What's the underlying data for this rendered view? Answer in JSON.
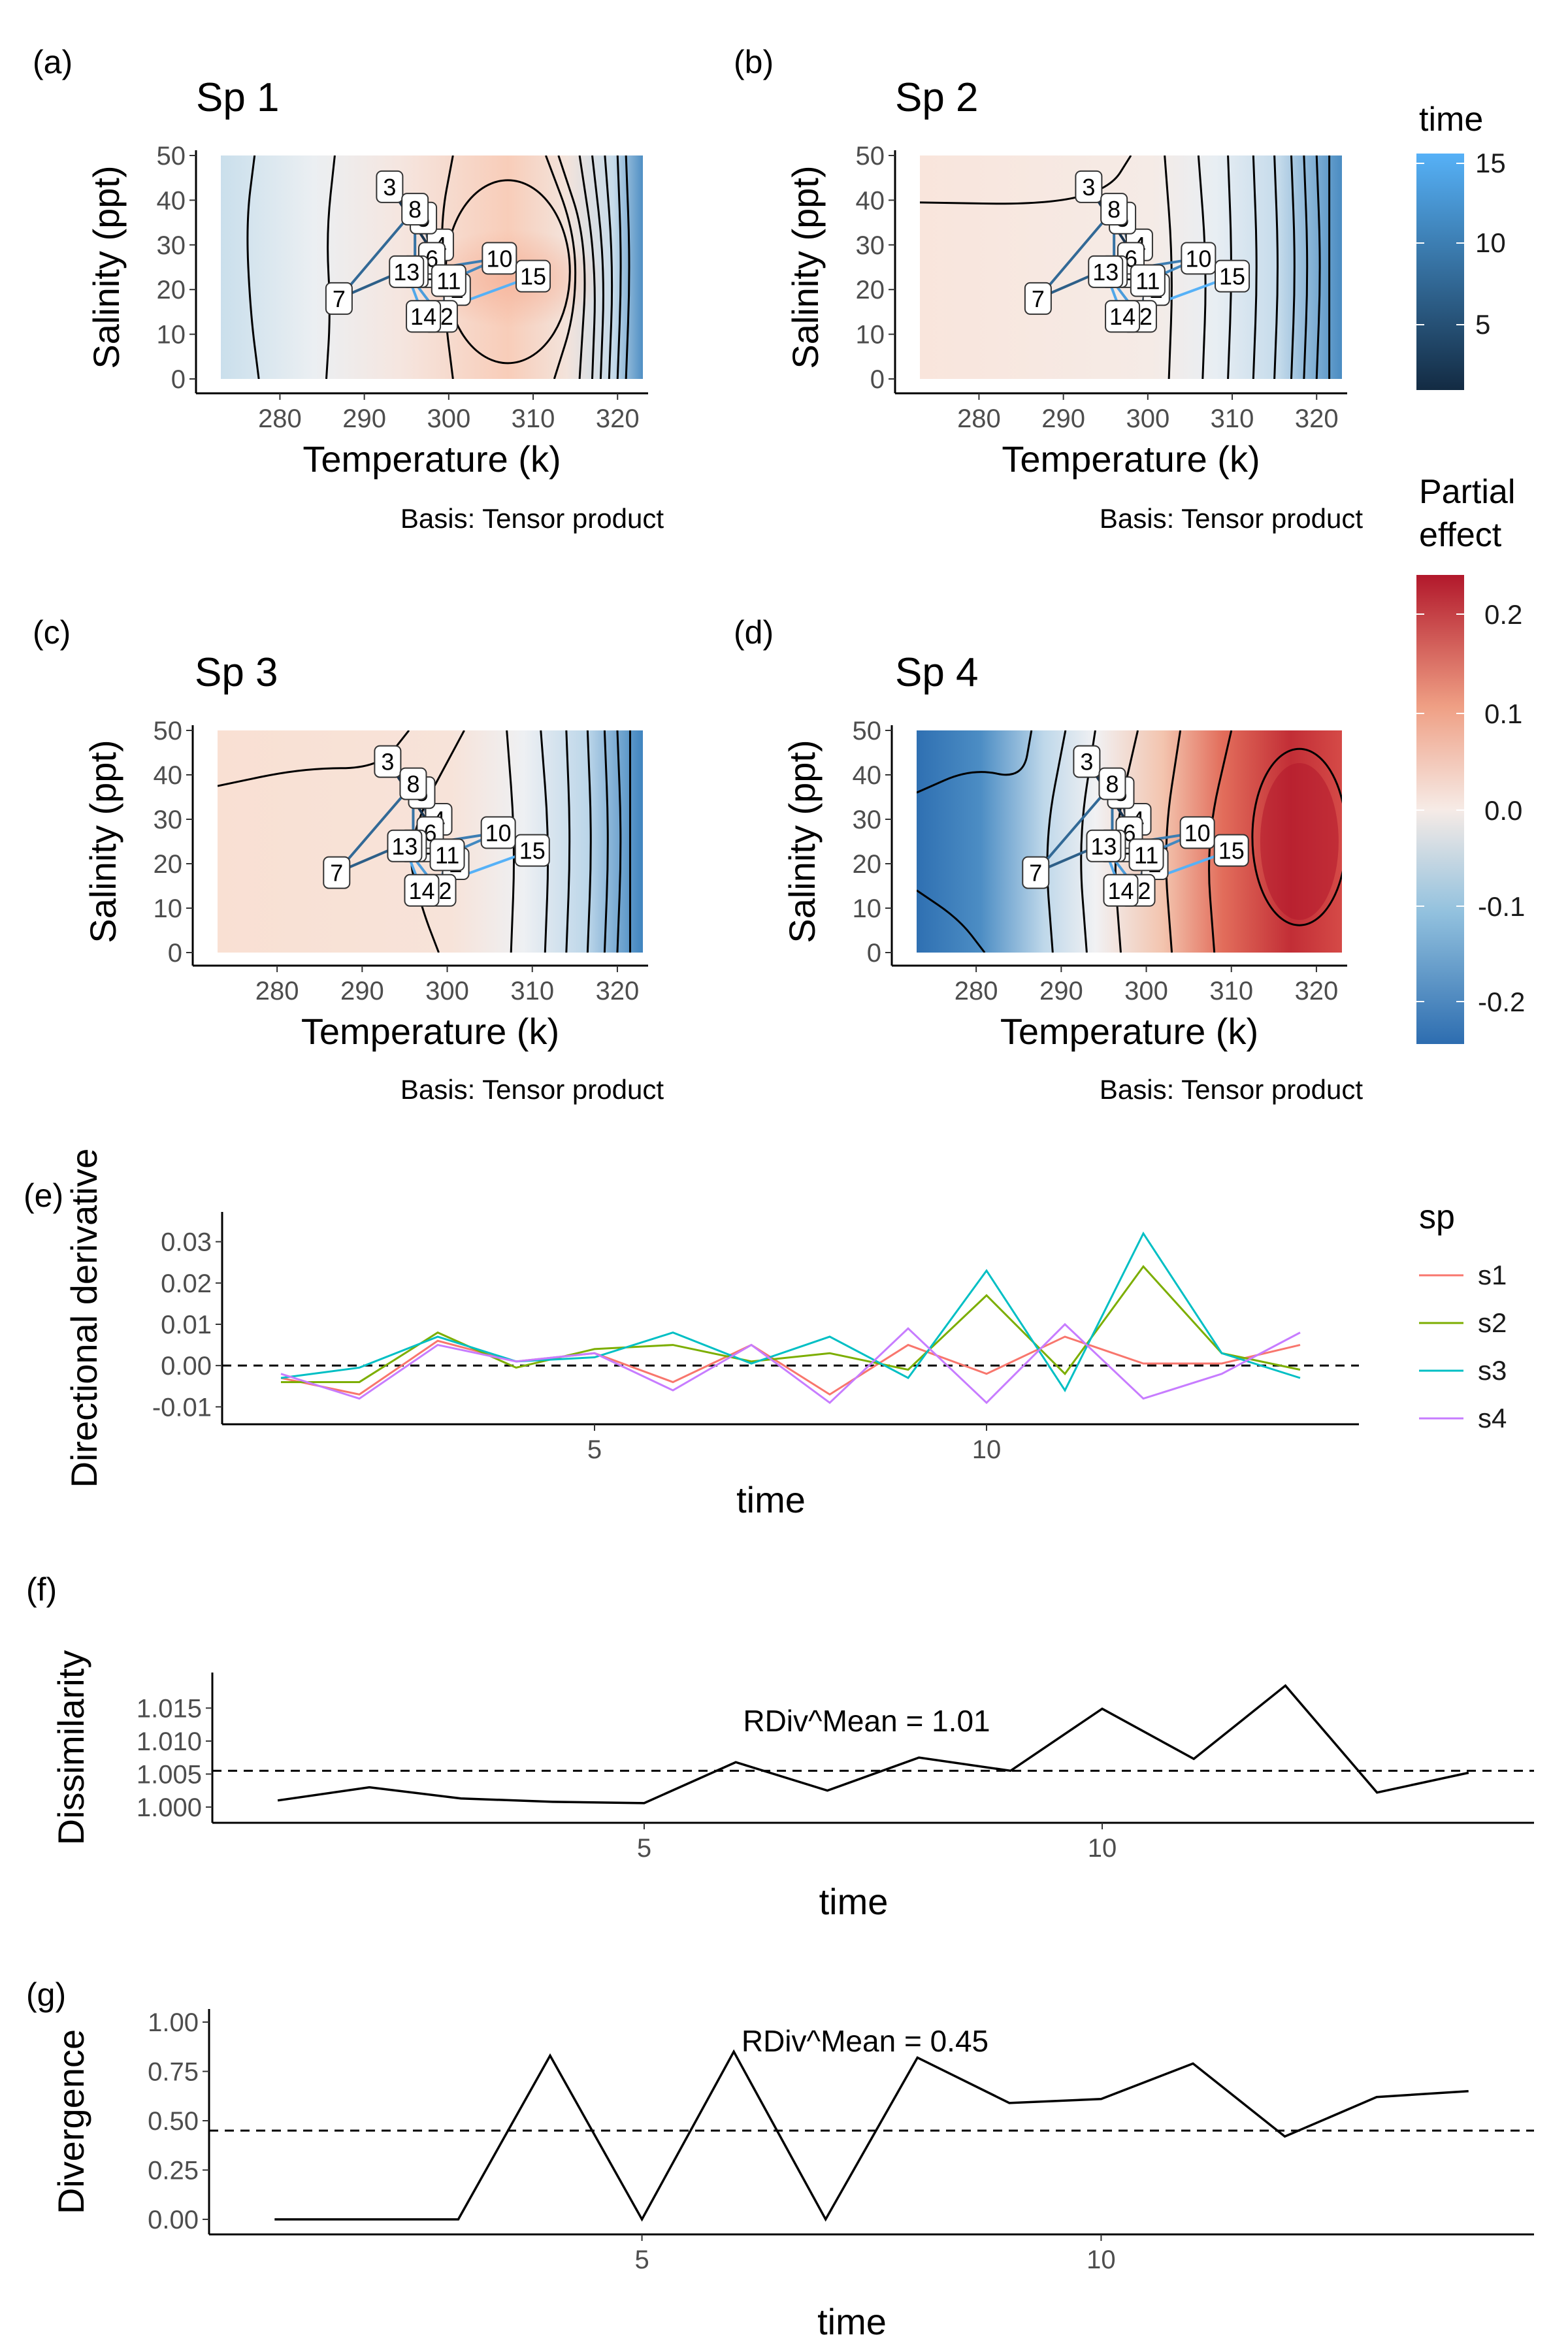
{
  "panel_tags": {
    "a": "(a)",
    "b": "(b)",
    "c": "(c)",
    "d": "(d)",
    "e": "(e)",
    "f": "(f)",
    "g": "(g)"
  },
  "caption": "Basis: Tensor product",
  "legends": {
    "time": {
      "title": "time",
      "ticks": [
        "15",
        "10",
        "5"
      ],
      "color_low": "#132B43",
      "color_high": "#56B1F7"
    },
    "effect": {
      "title_line1": "Partial",
      "title_line2": "effect",
      "ticks": [
        "0.2",
        "0.1",
        "0.0",
        "-0.1",
        "-0.2"
      ]
    },
    "sp": {
      "title": "sp",
      "items": [
        {
          "label": "s1",
          "color": "#F8766D"
        },
        {
          "label": "s2",
          "color": "#7CAE00"
        },
        {
          "label": "s3",
          "color": "#00BFC4"
        },
        {
          "label": "s4",
          "color": "#C77CFF"
        }
      ]
    }
  },
  "chart_data": [
    {
      "type": "heatmap",
      "title": "Sp 1",
      "xlabel": "Temperature (k)",
      "ylabel": "Salinity (ppt)",
      "xlim": [
        273,
        323
      ],
      "ylim": [
        0,
        50
      ],
      "x_ticks": [
        280,
        290,
        300,
        310,
        320
      ],
      "y_ticks": [
        0,
        10,
        20,
        30,
        40,
        50
      ],
      "effect_summary": "cool-to-neutral at low temperature, warm peak near 308 K and 22 ppt, strongly negative above 318 K"
    },
    {
      "type": "heatmap",
      "title": "Sp 2",
      "xlabel": "Temperature (k)",
      "ylabel": "Salinity (ppt)",
      "xlim": [
        273,
        323
      ],
      "ylim": [
        0,
        50
      ],
      "x_ticks": [
        280,
        290,
        300,
        310,
        320
      ],
      "y_ticks": [
        0,
        10,
        20,
        30,
        40,
        50
      ],
      "effect_summary": "weakly positive below 305 K, decreasing steadily to negative at high temperature"
    },
    {
      "type": "heatmap",
      "title": "Sp 3",
      "xlabel": "Temperature (k)",
      "ylabel": "Salinity (ppt)",
      "xlim": [
        273,
        323
      ],
      "ylim": [
        0,
        50
      ],
      "x_ticks": [
        280,
        290,
        300,
        310,
        320
      ],
      "y_ticks": [
        0,
        10,
        20,
        30,
        40,
        50
      ],
      "effect_summary": "weakly positive below 305 K, decreasing to negative above 315 K"
    },
    {
      "type": "heatmap",
      "title": "Sp 4",
      "xlabel": "Temperature (k)",
      "ylabel": "Salinity (ppt)",
      "xlim": [
        273,
        323
      ],
      "ylim": [
        0,
        50
      ],
      "x_ticks": [
        280,
        290,
        300,
        310,
        320
      ],
      "y_ticks": [
        0,
        10,
        20,
        30,
        40,
        50
      ],
      "effect_summary": "strongly negative near 280 K, strongly positive peak near 318 K and 25 ppt"
    },
    {
      "type": "line",
      "xlabel": "time",
      "ylabel": "Directional derivative",
      "xlim": [
        0.5,
        14.5
      ],
      "ylim": [
        -0.012,
        0.035
      ],
      "x_ticks": [
        5,
        10
      ],
      "y_ticks": [
        -0.01,
        0.0,
        0.01,
        0.02,
        0.03
      ],
      "y_tick_labels": [
        "-0.01",
        "0.00",
        "0.01",
        "0.02",
        "0.03"
      ],
      "reference_line": 0.0,
      "x": [
        1,
        2,
        3,
        4,
        5,
        6,
        7,
        8,
        9,
        10,
        11,
        12,
        13,
        14
      ],
      "series": [
        {
          "name": "s1",
          "values": [
            -0.003,
            -0.007,
            0.006,
            0.001,
            0.003,
            -0.004,
            0.005,
            -0.007,
            0.005,
            -0.002,
            0.007,
            0.0005,
            0.0005,
            0.005
          ]
        },
        {
          "name": "s2",
          "values": [
            -0.004,
            -0.004,
            0.008,
            -0.0005,
            0.004,
            0.005,
            0.001,
            0.003,
            -0.001,
            0.017,
            -0.002,
            0.024,
            0.003,
            -0.001
          ]
        },
        {
          "name": "s3",
          "values": [
            -0.003,
            -0.0005,
            0.007,
            0.001,
            0.002,
            0.008,
            0.0005,
            0.007,
            -0.003,
            0.023,
            -0.006,
            0.032,
            0.003,
            -0.003
          ]
        },
        {
          "name": "s4",
          "values": [
            -0.002,
            -0.008,
            0.005,
            0.001,
            0.003,
            -0.006,
            0.005,
            -0.009,
            0.009,
            -0.009,
            0.01,
            -0.008,
            -0.002,
            0.008
          ]
        }
      ]
    },
    {
      "type": "line",
      "xlabel": "time",
      "ylabel": "Dissimilarity",
      "xlim": [
        0.5,
        14.5
      ],
      "ylim": [
        0.999,
        1.019
      ],
      "x_ticks": [
        5,
        10
      ],
      "y_ticks": [
        1.0,
        1.005,
        1.01,
        1.015
      ],
      "y_tick_labels": [
        "1.000",
        "1.005",
        "1.010",
        "1.015"
      ],
      "reference_line": 1.0055,
      "annotation": "RDiv^Mean = 1.01",
      "x": [
        1,
        2,
        3,
        4,
        5,
        6,
        7,
        8,
        9,
        10,
        11,
        12,
        13,
        14
      ],
      "values": [
        1.001,
        1.003,
        1.0013,
        1.0008,
        1.0006,
        1.0068,
        1.0025,
        1.0075,
        1.0055,
        1.0149,
        1.0073,
        1.0184,
        1.0022,
        1.0052
      ]
    },
    {
      "type": "line",
      "xlabel": "time",
      "ylabel": "Divergence",
      "xlim": [
        0.5,
        14.5
      ],
      "ylim": [
        -0.03,
        1.02
      ],
      "x_ticks": [
        5,
        10
      ],
      "y_ticks": [
        0.0,
        0.25,
        0.5,
        0.75,
        1.0
      ],
      "y_tick_labels": [
        "0.00",
        "0.25",
        "0.50",
        "0.75",
        "1.00"
      ],
      "reference_line": 0.45,
      "annotation": "RDiv^Mean = 0.45",
      "x": [
        1,
        2,
        3,
        4,
        5,
        6,
        7,
        8,
        9,
        10,
        11,
        12,
        13,
        14
      ],
      "values": [
        0.0,
        0.0,
        0.0,
        0.83,
        0.0,
        0.85,
        0.0,
        0.82,
        0.59,
        0.61,
        0.79,
        0.42,
        0.62,
        0.65
      ]
    }
  ],
  "trajectory": {
    "labels": [
      "1",
      "2",
      "3",
      "4",
      "5",
      "6",
      "7",
      "8",
      "9",
      "10",
      "11",
      "12",
      "13",
      "14",
      "15"
    ],
    "temperature": [
      298,
      301,
      293,
      299,
      297,
      298,
      287,
      296,
      296,
      306,
      300,
      299,
      295,
      297,
      310
    ],
    "salinity": [
      24,
      20,
      43,
      30,
      36,
      27,
      18,
      38,
      24,
      27,
      22,
      14,
      24,
      14,
      23
    ]
  }
}
